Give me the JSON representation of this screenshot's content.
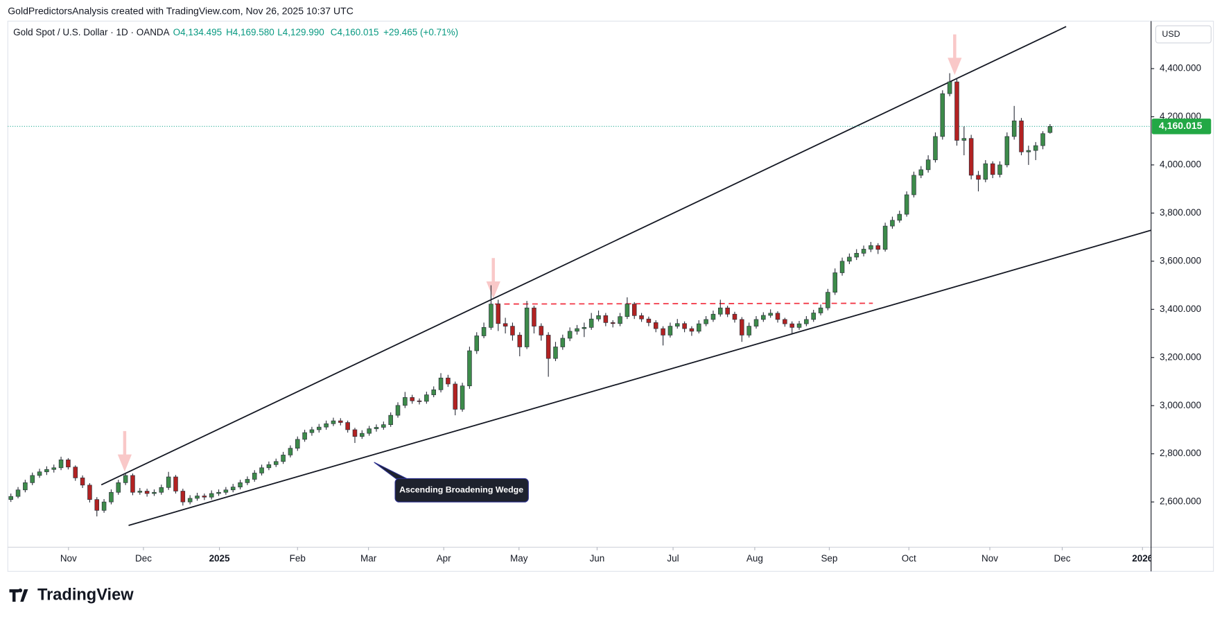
{
  "chart_data": {
    "type": "candlestick",
    "title": "GoldPredictorsAnalysis created with TradingView.com, Nov 26, 2025 10:37 UTC",
    "subtitle": "Gold Spot / U.S. Dollar · 1D · OANDA",
    "ohlc": [
      {
        "value": 4134.495,
        "label": "O4,134.495"
      },
      {
        "value": 4169.58,
        "label": "H4,169.580"
      },
      {
        "value": 4129.99,
        "label": "L4,129.990"
      },
      {
        "value": 4160.015,
        "label": "C4,160.015"
      }
    ],
    "change": {
      "value": 29.465,
      "label": "+29.465 (+0.71%)"
    },
    "currency": "USD",
    "annotation": "Ascending Broadening Wedge",
    "last_price": {
      "value": 4160.015,
      "label": "4,160.015"
    },
    "up_color": "#3d8b4a",
    "down_color": "#b22222",
    "grid": false,
    "xlim": [
      -0.43,
      159.1
    ],
    "xticks": [
      {
        "value": 8.04,
        "label": "Nov"
      },
      {
        "value": 18.5,
        "label": "Dec"
      },
      {
        "value": 29.1,
        "label": "2025"
      },
      {
        "value": 40,
        "label": "Feb"
      },
      {
        "value": 49.9,
        "label": "Mar"
      },
      {
        "value": 60.4,
        "label": "Apr"
      },
      {
        "value": 70.9,
        "label": "May"
      },
      {
        "value": 81.8,
        "label": "Jun"
      },
      {
        "value": 92.4,
        "label": "Jul"
      },
      {
        "value": 103.8,
        "label": "Aug"
      },
      {
        "value": 114.2,
        "label": "Sep"
      },
      {
        "value": 125.3,
        "label": "Oct"
      },
      {
        "value": 136.6,
        "label": "Nov"
      },
      {
        "value": 146.7,
        "label": "Dec"
      },
      {
        "value": 157.9,
        "label": "2026"
      }
    ],
    "ylim": [
      2412,
      4594
    ],
    "yticks": [
      {
        "value": 2600,
        "label": "2,600.000"
      },
      {
        "value": 2800,
        "label": "2,800.000"
      },
      {
        "value": 3000,
        "label": "3,000.000"
      },
      {
        "value": 3200,
        "label": "3,200.000"
      },
      {
        "value": 3400,
        "label": "3,400.000"
      },
      {
        "value": 3600,
        "label": "3,600.000"
      },
      {
        "value": 3800,
        "label": "3,800.000"
      },
      {
        "value": 4000,
        "label": "4,000.000"
      },
      {
        "value": 4200,
        "label": "4,200.000"
      },
      {
        "value": 4400,
        "label": "4,400.000"
      }
    ],
    "candles": [
      [
        2610,
        2635,
        2600,
        2623
      ],
      [
        2623,
        2662,
        2615,
        2650
      ],
      [
        2650,
        2692,
        2640,
        2680
      ],
      [
        2680,
        2722,
        2670,
        2710
      ],
      [
        2710,
        2738,
        2700,
        2725
      ],
      [
        2725,
        2748,
        2712,
        2735
      ],
      [
        2735,
        2755,
        2722,
        2742
      ],
      [
        2742,
        2788,
        2732,
        2775
      ],
      [
        2775,
        2782,
        2735,
        2745
      ],
      [
        2745,
        2752,
        2688,
        2700
      ],
      [
        2700,
        2710,
        2658,
        2670
      ],
      [
        2670,
        2678,
        2598,
        2610
      ],
      [
        2610,
        2620,
        2540,
        2565
      ],
      [
        2565,
        2612,
        2555,
        2600
      ],
      [
        2600,
        2652,
        2590,
        2640
      ],
      [
        2640,
        2692,
        2630,
        2680
      ],
      [
        2680,
        2722,
        2670,
        2710
      ],
      [
        2710,
        2718,
        2628,
        2640
      ],
      [
        2640,
        2658,
        2630,
        2645
      ],
      [
        2645,
        2655,
        2622,
        2635
      ],
      [
        2635,
        2652,
        2625,
        2640
      ],
      [
        2640,
        2672,
        2630,
        2660
      ],
      [
        2660,
        2725,
        2650,
        2704
      ],
      [
        2704,
        2712,
        2635,
        2645
      ],
      [
        2645,
        2655,
        2585,
        2600
      ],
      [
        2600,
        2628,
        2590,
        2615
      ],
      [
        2615,
        2638,
        2605,
        2625
      ],
      [
        2625,
        2635,
        2608,
        2620
      ],
      [
        2620,
        2648,
        2610,
        2635
      ],
      [
        2635,
        2652,
        2625,
        2640
      ],
      [
        2640,
        2662,
        2630,
        2650
      ],
      [
        2650,
        2675,
        2640,
        2662
      ],
      [
        2662,
        2692,
        2652,
        2680
      ],
      [
        2680,
        2706,
        2670,
        2694
      ],
      [
        2694,
        2732,
        2684,
        2720
      ],
      [
        2720,
        2755,
        2710,
        2742
      ],
      [
        2742,
        2768,
        2732,
        2755
      ],
      [
        2755,
        2780,
        2745,
        2768
      ],
      [
        2768,
        2808,
        2758,
        2795
      ],
      [
        2795,
        2835,
        2785,
        2823
      ],
      [
        2823,
        2872,
        2812,
        2860
      ],
      [
        2860,
        2900,
        2850,
        2888
      ],
      [
        2888,
        2912,
        2875,
        2900
      ],
      [
        2900,
        2924,
        2888,
        2911
      ],
      [
        2911,
        2938,
        2900,
        2925
      ],
      [
        2925,
        2950,
        2915,
        2937
      ],
      [
        2937,
        2948,
        2918,
        2930
      ],
      [
        2930,
        2938,
        2888,
        2900
      ],
      [
        2900,
        2908,
        2845,
        2872
      ],
      [
        2872,
        2898,
        2862,
        2885
      ],
      [
        2885,
        2916,
        2875,
        2904
      ],
      [
        2904,
        2922,
        2892,
        2910
      ],
      [
        2910,
        2934,
        2900,
        2921
      ],
      [
        2921,
        2972,
        2912,
        2960
      ],
      [
        2960,
        3014,
        2950,
        3001
      ],
      [
        3001,
        3057,
        2990,
        3034
      ],
      [
        3034,
        3045,
        3008,
        3020
      ],
      [
        3020,
        3030,
        3005,
        3018
      ],
      [
        3018,
        3058,
        3008,
        3045
      ],
      [
        3045,
        3080,
        3035,
        3066
      ],
      [
        3066,
        3135,
        3055,
        3115
      ],
      [
        3115,
        3128,
        3078,
        3090
      ],
      [
        3090,
        3100,
        2960,
        2985
      ],
      [
        2985,
        3095,
        2975,
        3082
      ],
      [
        3082,
        3245,
        3070,
        3228
      ],
      [
        3228,
        3305,
        3215,
        3290
      ],
      [
        3290,
        3345,
        3280,
        3325
      ],
      [
        3325,
        3500,
        3315,
        3422
      ],
      [
        3422,
        3440,
        3310,
        3341
      ],
      [
        3341,
        3365,
        3300,
        3330
      ],
      [
        3330,
        3345,
        3270,
        3293
      ],
      [
        3293,
        3305,
        3205,
        3244
      ],
      [
        3244,
        3435,
        3235,
        3406
      ],
      [
        3406,
        3415,
        3300,
        3330
      ],
      [
        3330,
        3342,
        3270,
        3293
      ],
      [
        3293,
        3305,
        3120,
        3196
      ],
      [
        3196,
        3265,
        3185,
        3244
      ],
      [
        3244,
        3295,
        3232,
        3280
      ],
      [
        3280,
        3325,
        3268,
        3309
      ],
      [
        3309,
        3335,
        3295,
        3320
      ],
      [
        3320,
        3345,
        3285,
        3325
      ],
      [
        3325,
        3385,
        3315,
        3360
      ],
      [
        3360,
        3395,
        3350,
        3374
      ],
      [
        3374,
        3385,
        3330,
        3345
      ],
      [
        3345,
        3355,
        3325,
        3341
      ],
      [
        3341,
        3385,
        3330,
        3370
      ],
      [
        3370,
        3450,
        3360,
        3422
      ],
      [
        3422,
        3430,
        3360,
        3374
      ],
      [
        3374,
        3385,
        3348,
        3360
      ],
      [
        3360,
        3370,
        3330,
        3345
      ],
      [
        3345,
        3355,
        3305,
        3320
      ],
      [
        3320,
        3330,
        3250,
        3293
      ],
      [
        3293,
        3345,
        3283,
        3330
      ],
      [
        3330,
        3360,
        3320,
        3341
      ],
      [
        3341,
        3350,
        3305,
        3320
      ],
      [
        3320,
        3330,
        3290,
        3309
      ],
      [
        3309,
        3355,
        3300,
        3340
      ],
      [
        3340,
        3372,
        3330,
        3358
      ],
      [
        3358,
        3395,
        3348,
        3380
      ],
      [
        3380,
        3440,
        3370,
        3406
      ],
      [
        3406,
        3415,
        3368,
        3380
      ],
      [
        3380,
        3390,
        3345,
        3358
      ],
      [
        3358,
        3368,
        3265,
        3293
      ],
      [
        3293,
        3345,
        3283,
        3330
      ],
      [
        3330,
        3372,
        3320,
        3358
      ],
      [
        3358,
        3388,
        3348,
        3375
      ],
      [
        3375,
        3400,
        3365,
        3384
      ],
      [
        3384,
        3392,
        3345,
        3358
      ],
      [
        3358,
        3365,
        3328,
        3340
      ],
      [
        3340,
        3350,
        3300,
        3325
      ],
      [
        3325,
        3352,
        3315,
        3340
      ],
      [
        3340,
        3372,
        3330,
        3358
      ],
      [
        3358,
        3398,
        3348,
        3385
      ],
      [
        3385,
        3420,
        3375,
        3406
      ],
      [
        3406,
        3485,
        3396,
        3471
      ],
      [
        3471,
        3570,
        3460,
        3552
      ],
      [
        3552,
        3615,
        3540,
        3600
      ],
      [
        3600,
        3632,
        3588,
        3617
      ],
      [
        3617,
        3650,
        3605,
        3633
      ],
      [
        3633,
        3665,
        3620,
        3650
      ],
      [
        3650,
        3680,
        3638,
        3665
      ],
      [
        3665,
        3675,
        3630,
        3649
      ],
      [
        3649,
        3760,
        3640,
        3746
      ],
      [
        3746,
        3785,
        3735,
        3770
      ],
      [
        3770,
        3810,
        3760,
        3795
      ],
      [
        3795,
        3890,
        3785,
        3876
      ],
      [
        3876,
        3972,
        3865,
        3957
      ],
      [
        3957,
        3995,
        3945,
        3980
      ],
      [
        3980,
        4040,
        3968,
        4021
      ],
      [
        4021,
        4135,
        4010,
        4118
      ],
      [
        4118,
        4310,
        4105,
        4296
      ],
      [
        4296,
        4381,
        4285,
        4345
      ],
      [
        4345,
        4360,
        4080,
        4102
      ],
      [
        4102,
        4160,
        4040,
        4110
      ],
      [
        4110,
        4125,
        3940,
        3957
      ],
      [
        3957,
        3975,
        3890,
        3940
      ],
      [
        3940,
        4020,
        3928,
        4005
      ],
      [
        4005,
        4015,
        3945,
        3960
      ],
      [
        3960,
        4015,
        3948,
        4000
      ],
      [
        4000,
        4135,
        3990,
        4118
      ],
      [
        4118,
        4245,
        4105,
        4183
      ],
      [
        4183,
        4195,
        4040,
        4054
      ],
      [
        4054,
        4080,
        4000,
        4060
      ],
      [
        4060,
        4095,
        4020,
        4080
      ],
      [
        4080,
        4140,
        4065,
        4130
      ],
      [
        4134.495,
        4169.58,
        4129.99,
        4160.015
      ]
    ]
  },
  "footer": {
    "logo": "TradingView"
  }
}
